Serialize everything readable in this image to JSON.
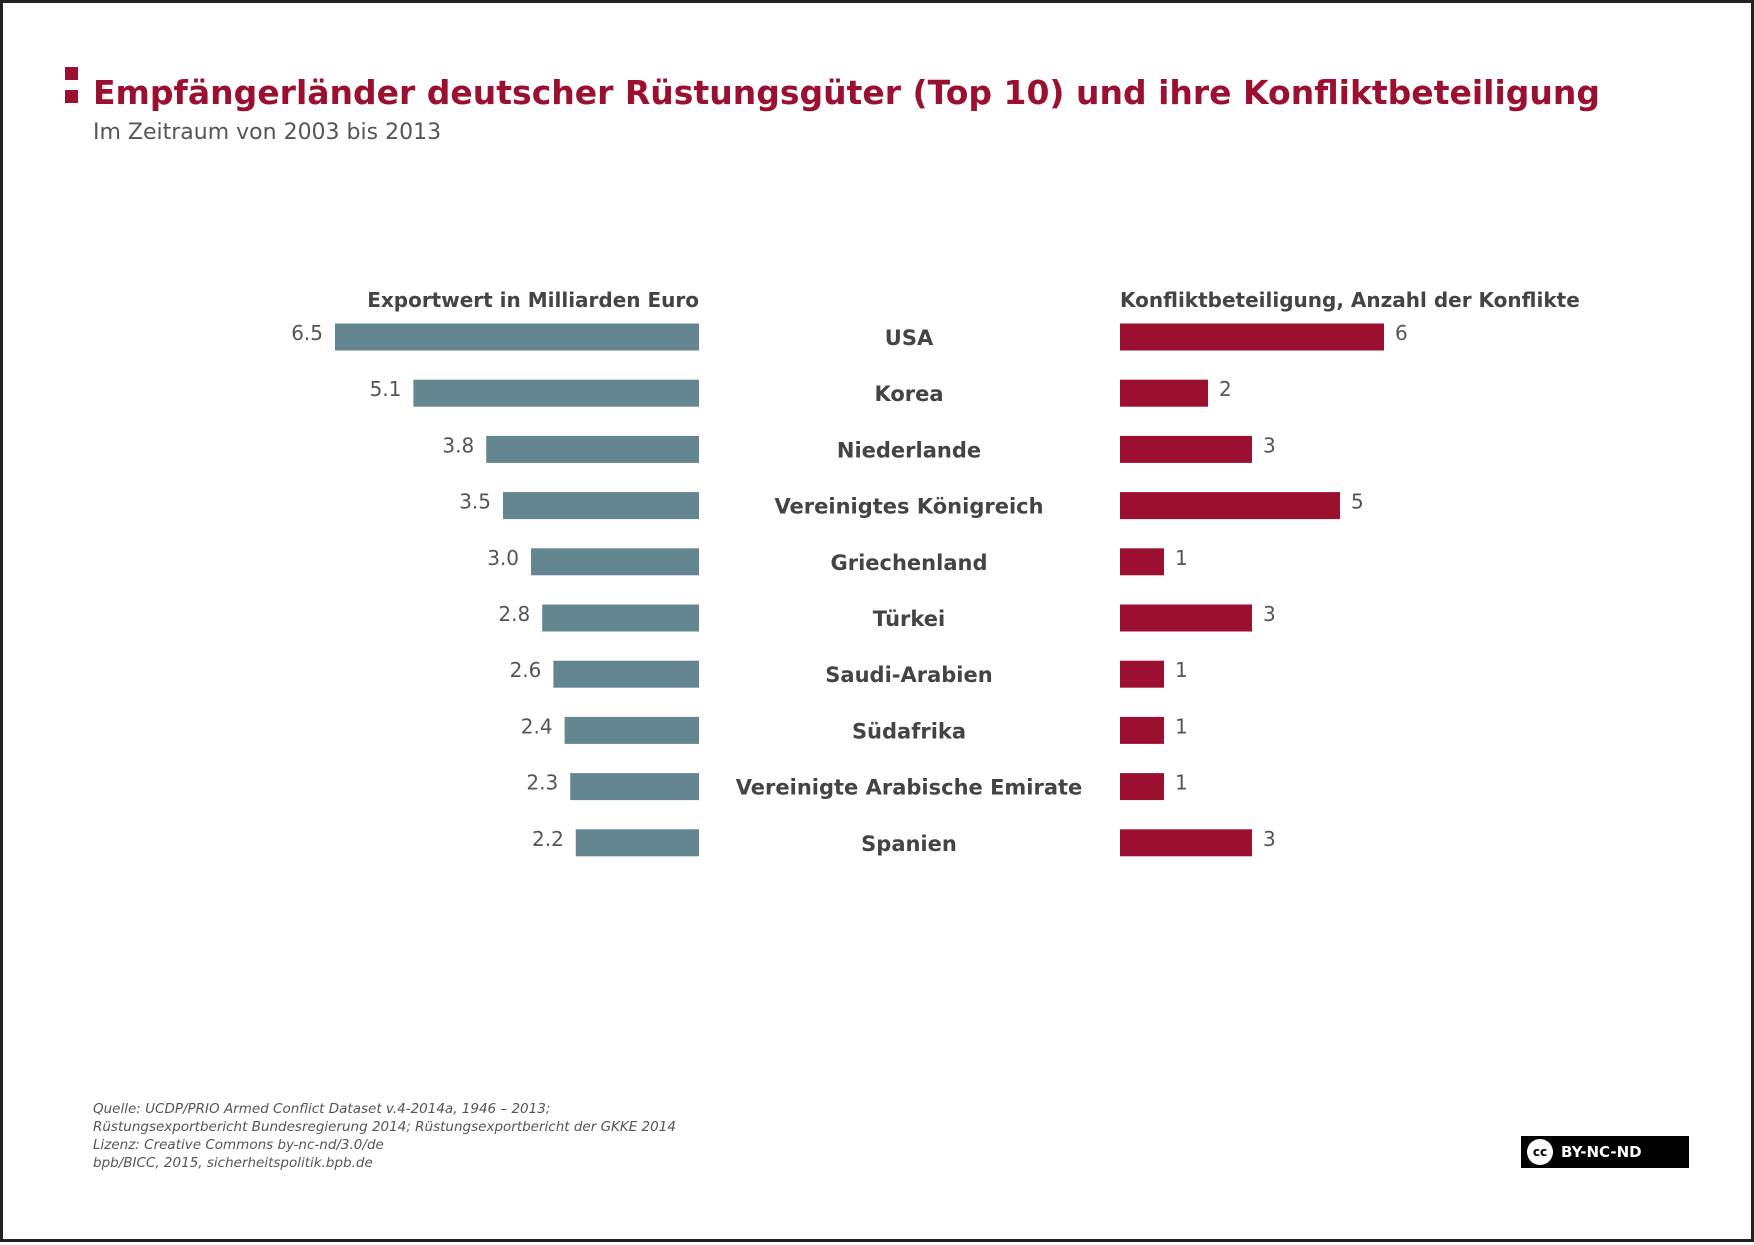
{
  "title": "Empfängerländer deutscher Rüstungsgüter (Top 10) und ihre Konfliktbeteiligung",
  "subtitle": "Im Zeitraum von 2003 bis 2013",
  "colors": {
    "title": "#9b1030",
    "export_bar": "#638690",
    "conflict_bar": "#9b1030"
  },
  "chart_data": {
    "type": "bar",
    "orientation": "horizontal",
    "categories": [
      "USA",
      "Korea",
      "Niederlande",
      "Vereinigtes Königreich",
      "Griechenland",
      "Türkei",
      "Saudi-Arabien",
      "Südafrika",
      "Vereinigte Arabische Emirate",
      "Spanien"
    ],
    "series": [
      {
        "name": "Exportwert in Milliarden Euro",
        "values": [
          6.5,
          5.1,
          3.8,
          3.5,
          3.0,
          2.8,
          2.6,
          2.4,
          2.3,
          2.2
        ],
        "labels": [
          "6.5",
          "5.1",
          "3.8",
          "3.5",
          "3.0",
          "2.8",
          "2.6",
          "2.4",
          "2.3",
          "2.2"
        ]
      },
      {
        "name": "Konfliktbeteiligung, Anzahl der Konflikte",
        "values": [
          6,
          2,
          3,
          5,
          1,
          3,
          1,
          1,
          1,
          3
        ],
        "labels": [
          "6",
          "2",
          "3",
          "5",
          "1",
          "3",
          "1",
          "1",
          "1",
          "3"
        ]
      }
    ]
  },
  "footer": {
    "lines": [
      "Quelle: UCDP/PRIO Armed Conflict Dataset v.4-2014a, 1946 – 2013;",
      "Rüstungsexportbericht Bundesregierung 2014; Rüstungsexportbericht der GKKE 2014",
      "Lizenz: Creative Commons by-nc-nd/3.0/de",
      "bpb/BICC, 2015, sicherheitspolitik.bpb.de"
    ]
  },
  "license_badge": {
    "icon": "cc-icon",
    "icon_text": "cc",
    "text": "BY-NC-ND"
  }
}
